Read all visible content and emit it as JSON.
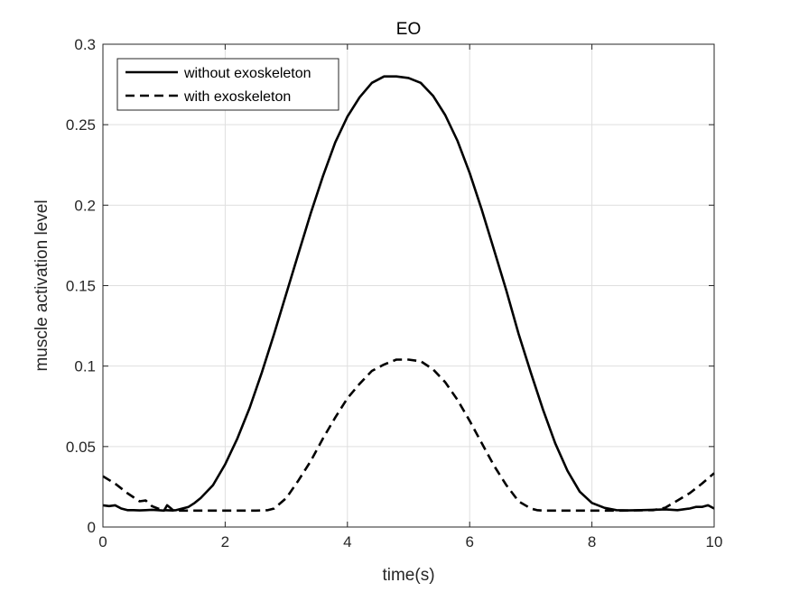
{
  "chart_data": {
    "type": "line",
    "title": "EO",
    "xlabel": "time(s)",
    "ylabel": "muscle activation level",
    "xlim": [
      0,
      10
    ],
    "ylim": [
      0,
      0.3
    ],
    "xticks": [
      0,
      2,
      4,
      6,
      8,
      10
    ],
    "yticks": [
      0,
      0.05,
      0.1,
      0.15,
      0.2,
      0.25,
      0.3
    ],
    "xtick_labels": [
      "0",
      "2",
      "4",
      "6",
      "8",
      "10"
    ],
    "ytick_labels": [
      "0",
      "0.05",
      "0.1",
      "0.15",
      "0.2",
      "0.25",
      "0.3"
    ],
    "grid": true,
    "legend_position": "top-left",
    "series": [
      {
        "name": "without exoskeleton",
        "style": "solid",
        "color": "#000000",
        "x": [
          0,
          0.1,
          0.2,
          0.3,
          0.4,
          0.5,
          0.6,
          0.7,
          0.8,
          0.9,
          1.0,
          1.05,
          1.1,
          1.15,
          1.2,
          1.3,
          1.4,
          1.5,
          1.6,
          1.8,
          2.0,
          2.2,
          2.4,
          2.6,
          2.8,
          3.0,
          3.2,
          3.4,
          3.6,
          3.8,
          4.0,
          4.2,
          4.4,
          4.6,
          4.8,
          5.0,
          5.2,
          5.4,
          5.6,
          5.8,
          6.0,
          6.2,
          6.4,
          6.6,
          6.8,
          7.0,
          7.2,
          7.4,
          7.6,
          7.8,
          8.0,
          8.2,
          8.4,
          8.6,
          8.8,
          9.0,
          9.2,
          9.4,
          9.6,
          9.7,
          9.8,
          9.9,
          10.0
        ],
        "y": [
          0.0135,
          0.013,
          0.0135,
          0.0115,
          0.0105,
          0.0105,
          0.0103,
          0.0105,
          0.0107,
          0.0105,
          0.0102,
          0.0135,
          0.012,
          0.0103,
          0.0105,
          0.0115,
          0.0125,
          0.015,
          0.018,
          0.026,
          0.039,
          0.055,
          0.074,
          0.096,
          0.12,
          0.145,
          0.17,
          0.195,
          0.218,
          0.239,
          0.255,
          0.267,
          0.276,
          0.28,
          0.28,
          0.279,
          0.276,
          0.268,
          0.256,
          0.24,
          0.22,
          0.197,
          0.172,
          0.147,
          0.12,
          0.096,
          0.073,
          0.052,
          0.035,
          0.022,
          0.015,
          0.012,
          0.0105,
          0.0103,
          0.0105,
          0.0107,
          0.011,
          0.0105,
          0.0115,
          0.0125,
          0.0125,
          0.0135,
          0.0115
        ]
      },
      {
        "name": "with exoskeleton",
        "style": "dashed",
        "color": "#000000",
        "x": [
          0,
          0.2,
          0.4,
          0.6,
          0.7,
          0.8,
          0.9,
          1.0,
          1.1,
          1.2,
          1.5,
          2.0,
          2.5,
          2.7,
          2.8,
          3.0,
          3.2,
          3.4,
          3.6,
          3.8,
          4.0,
          4.2,
          4.4,
          4.6,
          4.8,
          5.0,
          5.2,
          5.4,
          5.6,
          5.8,
          6.0,
          6.2,
          6.4,
          6.6,
          6.8,
          7.0,
          7.1,
          7.2,
          7.5,
          8.0,
          8.5,
          9.0,
          9.2,
          9.4,
          9.6,
          9.8,
          10.0
        ],
        "y": [
          0.0315,
          0.027,
          0.021,
          0.016,
          0.0165,
          0.013,
          0.0115,
          0.0105,
          0.0103,
          0.0102,
          0.0102,
          0.0102,
          0.0102,
          0.0105,
          0.0115,
          0.018,
          0.029,
          0.041,
          0.055,
          0.068,
          0.08,
          0.089,
          0.097,
          0.101,
          0.104,
          0.104,
          0.103,
          0.098,
          0.09,
          0.079,
          0.066,
          0.052,
          0.038,
          0.026,
          0.016,
          0.0115,
          0.0105,
          0.0102,
          0.0102,
          0.0102,
          0.0102,
          0.0105,
          0.012,
          0.0165,
          0.021,
          0.027,
          0.0335
        ]
      }
    ]
  }
}
